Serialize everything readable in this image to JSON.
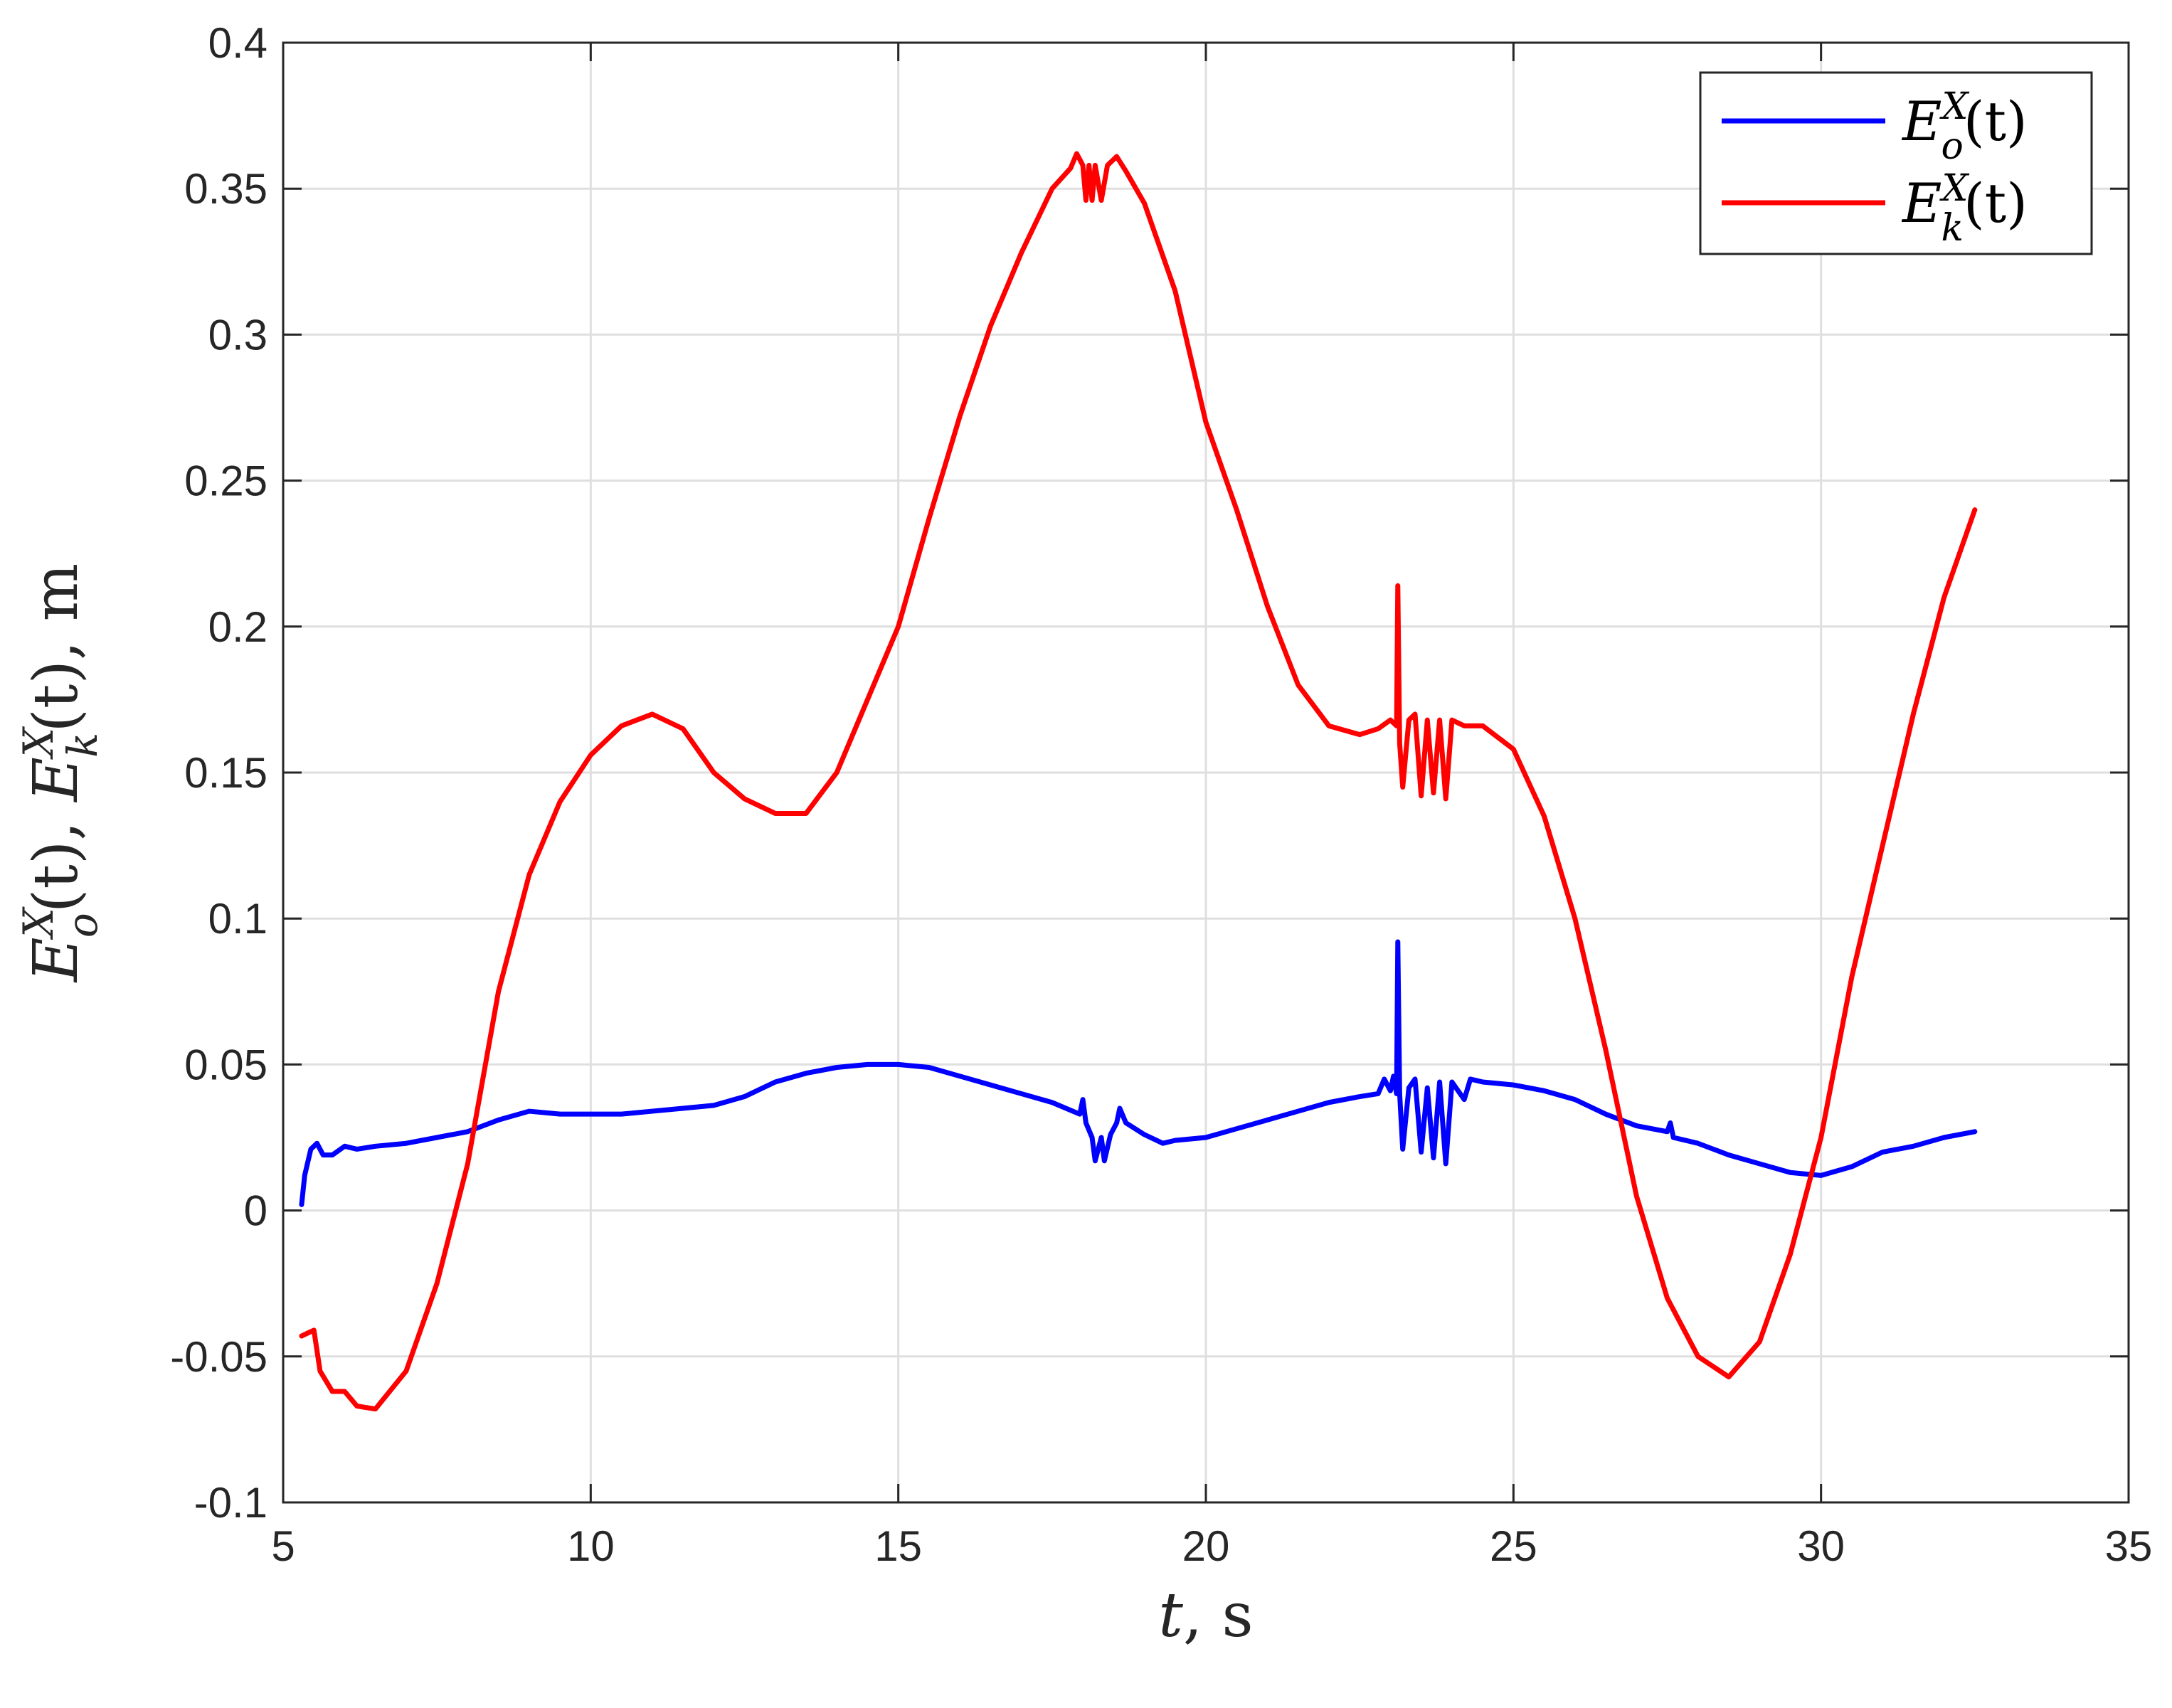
{
  "chart_data": {
    "type": "line",
    "x_axis": {
      "label_main": "t",
      "label_suffix": ", s",
      "range": [
        5,
        35
      ],
      "ticks": [
        5,
        10,
        15,
        20,
        25,
        30,
        35
      ]
    },
    "y_axis": {
      "label_parts": [
        "E",
        "X",
        "o",
        "(t), ",
        "E",
        "X",
        "k",
        "(t), m"
      ],
      "range": [
        -0.1,
        0.4
      ],
      "ticks": [
        -0.1,
        -0.05,
        0,
        0.05,
        0.1,
        0.15,
        0.2,
        0.25,
        0.3,
        0.35,
        0.4
      ],
      "tick_labels": [
        "-0.1",
        "-0.05",
        "0",
        "0.05",
        "0.1",
        "0.15",
        "0.2",
        "0.25",
        "0.3",
        "0.35",
        "0.4"
      ]
    },
    "grid": true,
    "legend": {
      "position": "top-right",
      "entries": [
        {
          "series": 0,
          "parts": [
            "E",
            "X",
            "o",
            "(t)"
          ]
        },
        {
          "series": 1,
          "parts": [
            "E",
            "X",
            "k",
            "(t)"
          ]
        }
      ]
    },
    "series": [
      {
        "color": "#0000ff",
        "points": [
          [
            5.3,
            0.002
          ],
          [
            5.35,
            0.012
          ],
          [
            5.45,
            0.021
          ],
          [
            5.55,
            0.023
          ],
          [
            5.65,
            0.019
          ],
          [
            5.8,
            0.019
          ],
          [
            6.0,
            0.022
          ],
          [
            6.2,
            0.021
          ],
          [
            6.5,
            0.022
          ],
          [
            7.0,
            0.023
          ],
          [
            7.5,
            0.025
          ],
          [
            8.0,
            0.027
          ],
          [
            8.5,
            0.031
          ],
          [
            9.0,
            0.034
          ],
          [
            9.5,
            0.033
          ],
          [
            10.0,
            0.033
          ],
          [
            10.5,
            0.033
          ],
          [
            11.0,
            0.034
          ],
          [
            11.5,
            0.035
          ],
          [
            12.0,
            0.036
          ],
          [
            12.5,
            0.039
          ],
          [
            13.0,
            0.044
          ],
          [
            13.5,
            0.047
          ],
          [
            14.0,
            0.049
          ],
          [
            14.5,
            0.05
          ],
          [
            15.0,
            0.05
          ],
          [
            15.5,
            0.049
          ],
          [
            16.0,
            0.046
          ],
          [
            16.5,
            0.043
          ],
          [
            17.0,
            0.04
          ],
          [
            17.5,
            0.037
          ],
          [
            17.95,
            0.033
          ],
          [
            18.0,
            0.038
          ],
          [
            18.05,
            0.03
          ],
          [
            18.15,
            0.025
          ],
          [
            18.2,
            0.017
          ],
          [
            18.3,
            0.025
          ],
          [
            18.35,
            0.017
          ],
          [
            18.45,
            0.026
          ],
          [
            18.55,
            0.03
          ],
          [
            18.6,
            0.035
          ],
          [
            18.7,
            0.03
          ],
          [
            19.0,
            0.026
          ],
          [
            19.3,
            0.023
          ],
          [
            19.5,
            0.024
          ],
          [
            20.0,
            0.025
          ],
          [
            20.5,
            0.028
          ],
          [
            21.0,
            0.031
          ],
          [
            21.5,
            0.034
          ],
          [
            22.0,
            0.037
          ],
          [
            22.5,
            0.039
          ],
          [
            22.8,
            0.04
          ],
          [
            22.9,
            0.045
          ],
          [
            23.0,
            0.041
          ],
          [
            23.05,
            0.046
          ],
          [
            23.1,
            0.04
          ],
          [
            23.12,
            0.092
          ],
          [
            23.15,
            0.04
          ],
          [
            23.2,
            0.021
          ],
          [
            23.3,
            0.042
          ],
          [
            23.4,
            0.045
          ],
          [
            23.5,
            0.02
          ],
          [
            23.6,
            0.042
          ],
          [
            23.7,
            0.018
          ],
          [
            23.8,
            0.044
          ],
          [
            23.9,
            0.016
          ],
          [
            24.0,
            0.044
          ],
          [
            24.2,
            0.038
          ],
          [
            24.3,
            0.045
          ],
          [
            24.5,
            0.044
          ],
          [
            25.0,
            0.043
          ],
          [
            25.5,
            0.041
          ],
          [
            26.0,
            0.038
          ],
          [
            26.5,
            0.033
          ],
          [
            27.0,
            0.029
          ],
          [
            27.5,
            0.027
          ],
          [
            27.55,
            0.03
          ],
          [
            27.6,
            0.025
          ],
          [
            28.0,
            0.023
          ],
          [
            28.5,
            0.019
          ],
          [
            29.0,
            0.016
          ],
          [
            29.5,
            0.013
          ],
          [
            30.0,
            0.012
          ],
          [
            30.5,
            0.015
          ],
          [
            31.0,
            0.02
          ],
          [
            31.5,
            0.022
          ],
          [
            32.0,
            0.025
          ],
          [
            32.5,
            0.027
          ]
        ]
      },
      {
        "color": "#ff0000",
        "points": [
          [
            5.3,
            -0.043
          ],
          [
            5.4,
            -0.042
          ],
          [
            5.5,
            -0.041
          ],
          [
            5.6,
            -0.055
          ],
          [
            5.8,
            -0.062
          ],
          [
            6.0,
            -0.062
          ],
          [
            6.2,
            -0.067
          ],
          [
            6.5,
            -0.068
          ],
          [
            7.0,
            -0.055
          ],
          [
            7.5,
            -0.025
          ],
          [
            8.0,
            0.016
          ],
          [
            8.5,
            0.075
          ],
          [
            9.0,
            0.115
          ],
          [
            9.5,
            0.14
          ],
          [
            10.0,
            0.156
          ],
          [
            10.5,
            0.166
          ],
          [
            11.0,
            0.17
          ],
          [
            11.5,
            0.165
          ],
          [
            12.0,
            0.15
          ],
          [
            12.5,
            0.141
          ],
          [
            13.0,
            0.136
          ],
          [
            13.5,
            0.136
          ],
          [
            14.0,
            0.15
          ],
          [
            14.5,
            0.175
          ],
          [
            15.0,
            0.2
          ],
          [
            15.5,
            0.237
          ],
          [
            16.0,
            0.272
          ],
          [
            16.5,
            0.303
          ],
          [
            17.0,
            0.328
          ],
          [
            17.5,
            0.35
          ],
          [
            17.8,
            0.357
          ],
          [
            17.9,
            0.362
          ],
          [
            18.0,
            0.358
          ],
          [
            18.05,
            0.346
          ],
          [
            18.1,
            0.358
          ],
          [
            18.15,
            0.346
          ],
          [
            18.2,
            0.358
          ],
          [
            18.3,
            0.346
          ],
          [
            18.4,
            0.358
          ],
          [
            18.55,
            0.361
          ],
          [
            18.7,
            0.356
          ],
          [
            19.0,
            0.345
          ],
          [
            19.5,
            0.315
          ],
          [
            20.0,
            0.27
          ],
          [
            20.5,
            0.24
          ],
          [
            21.0,
            0.207
          ],
          [
            21.5,
            0.18
          ],
          [
            22.0,
            0.166
          ],
          [
            22.5,
            0.163
          ],
          [
            22.8,
            0.165
          ],
          [
            23.0,
            0.168
          ],
          [
            23.1,
            0.166
          ],
          [
            23.12,
            0.214
          ],
          [
            23.15,
            0.16
          ],
          [
            23.2,
            0.145
          ],
          [
            23.3,
            0.168
          ],
          [
            23.4,
            0.17
          ],
          [
            23.5,
            0.142
          ],
          [
            23.6,
            0.168
          ],
          [
            23.7,
            0.143
          ],
          [
            23.8,
            0.168
          ],
          [
            23.9,
            0.141
          ],
          [
            24.0,
            0.168
          ],
          [
            24.2,
            0.166
          ],
          [
            24.5,
            0.166
          ],
          [
            25.0,
            0.158
          ],
          [
            25.5,
            0.135
          ],
          [
            26.0,
            0.1
          ],
          [
            26.5,
            0.055
          ],
          [
            27.0,
            0.005
          ],
          [
            27.5,
            -0.03
          ],
          [
            28.0,
            -0.05
          ],
          [
            28.5,
            -0.057
          ],
          [
            29.0,
            -0.045
          ],
          [
            29.5,
            -0.015
          ],
          [
            30.0,
            0.025
          ],
          [
            30.5,
            0.08
          ],
          [
            31.0,
            0.125
          ],
          [
            31.5,
            0.17
          ],
          [
            32.0,
            0.21
          ],
          [
            32.5,
            0.24
          ]
        ]
      }
    ]
  }
}
